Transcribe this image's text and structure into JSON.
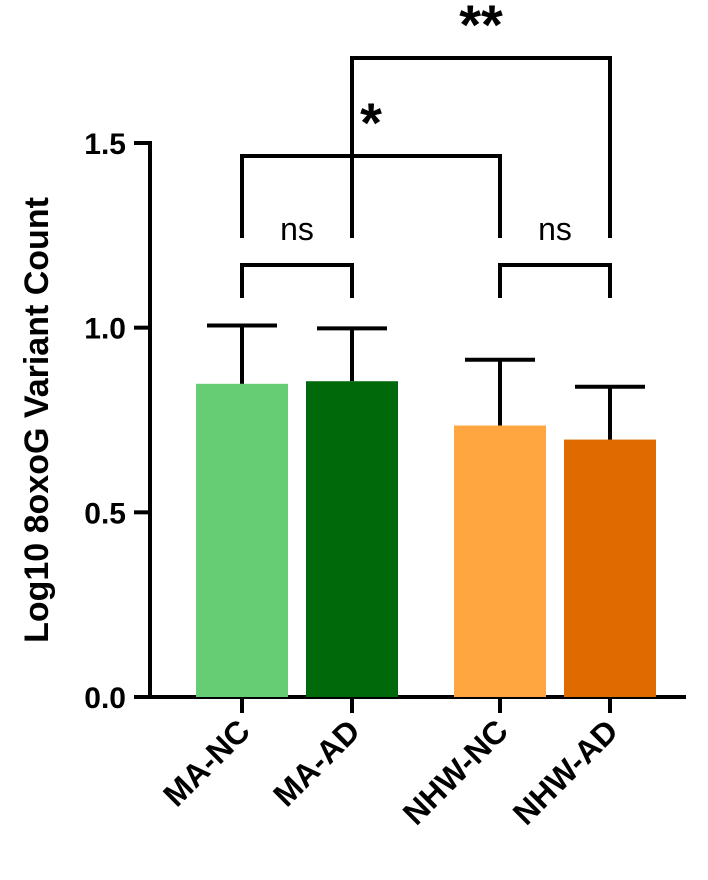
{
  "chart_data": {
    "type": "bar",
    "title": "",
    "xlabel": "",
    "ylabel": "Log10 8oxoG Variant Count",
    "ylim": [
      0,
      1.5
    ],
    "yticks": [
      "0.0",
      "0.5",
      "1.0",
      "1.5"
    ],
    "categories": [
      "MA-NC",
      "MA-AD",
      "NHW-NC",
      "NHW-AD"
    ],
    "values": [
      0.848,
      0.855,
      0.735,
      0.697
    ],
    "errors": [
      0.158,
      0.143,
      0.178,
      0.143
    ],
    "colors": [
      "#66cd74",
      "#006a0b",
      "#ffa640",
      "#df6b00"
    ],
    "grid": false,
    "legend": "none",
    "comparisons": [
      {
        "from": 0,
        "to": 1,
        "label": "ns"
      },
      {
        "from": 2,
        "to": 3,
        "label": "ns"
      },
      {
        "from": 0,
        "to": 2,
        "label": "*"
      },
      {
        "from": 1,
        "to": 3,
        "label": "**"
      }
    ]
  }
}
